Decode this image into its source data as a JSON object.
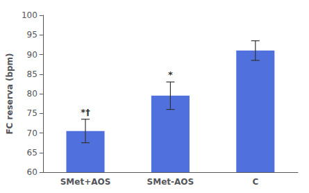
{
  "chart_data": {
    "type": "bar",
    "categories": [
      "SMet+AOS",
      "SMet-AOS",
      "C"
    ],
    "values": [
      70.5,
      79.5,
      91.0
    ],
    "errors": [
      3.0,
      3.5,
      2.5
    ],
    "annotations": [
      "*†",
      "*",
      null
    ],
    "ylabel": "FC reserva (bpm)",
    "ylim": [
      60,
      100
    ],
    "yticks": [
      60,
      65,
      70,
      75,
      80,
      85,
      90,
      95,
      100
    ],
    "grid": false
  }
}
